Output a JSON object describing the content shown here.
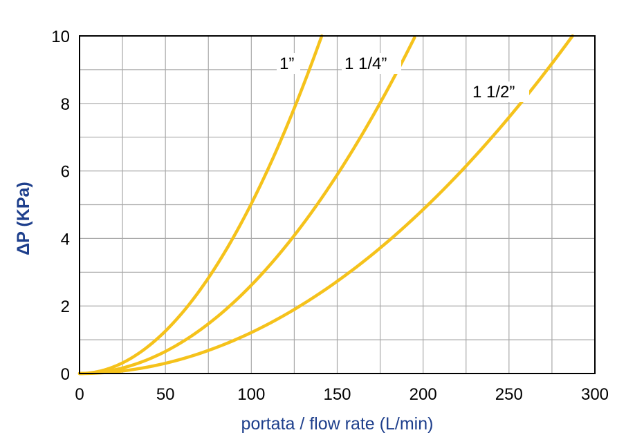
{
  "chart_data": {
    "type": "line",
    "title": "",
    "xlabel": "portata / flow rate (L/min)",
    "ylabel": "ΔP (KPa)",
    "xlim": [
      0,
      300
    ],
    "ylim": [
      0,
      10
    ],
    "x_major_ticks": [
      0,
      50,
      100,
      150,
      200,
      250,
      300
    ],
    "x_tick_labels": [
      "0",
      "50",
      "100",
      "150",
      "200",
      "250",
      "300"
    ],
    "y_major_ticks": [
      0,
      2,
      4,
      6,
      8,
      10
    ],
    "y_tick_labels": [
      "0",
      "2",
      "4",
      "6",
      "8",
      "10"
    ],
    "grid": true,
    "x_grid_step": 25,
    "y_grid_step": 1,
    "legend": "none",
    "series": [
      {
        "name": "1”",
        "exponent": 2,
        "x": [
          0,
          25,
          50,
          75,
          100,
          125,
          141
        ],
        "y": [
          0,
          0.31,
          1.25,
          2.81,
          5.0,
          7.8,
          10.0
        ]
      },
      {
        "name": "1 1/4”",
        "exponent": 2,
        "x": [
          0,
          25,
          50,
          75,
          100,
          125,
          150,
          175,
          195
        ],
        "y": [
          0,
          0.16,
          0.63,
          1.42,
          2.52,
          3.94,
          5.7,
          7.75,
          9.95
        ]
      },
      {
        "name": "1 1/2”",
        "exponent": 2,
        "x": [
          0,
          50,
          100,
          150,
          200,
          250,
          287
        ],
        "y": [
          0,
          0.3,
          1.2,
          2.7,
          4.8,
          7.5,
          10.0
        ]
      }
    ],
    "series_label_text": [
      "1”",
      "1 1/4”",
      "1 1/2”"
    ],
    "colors": {
      "line": "#f5c21b",
      "grid": "#a8a8a8",
      "axis": "#000000",
      "title": "#1e3f8c"
    }
  }
}
